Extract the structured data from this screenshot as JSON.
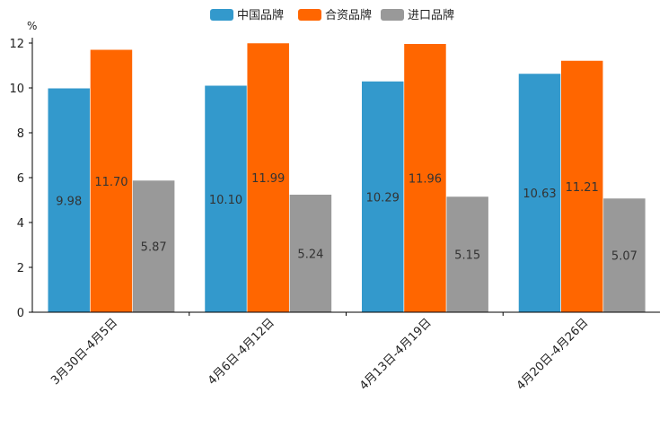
{
  "chart_data": {
    "type": "bar",
    "ylabel": "%",
    "ylim": [
      0,
      12
    ],
    "yticks": [
      0,
      2,
      4,
      6,
      8,
      10,
      12
    ],
    "categories": [
      "3月30日-4月5日",
      "4月6日-4月12日",
      "4月13日-4月19日",
      "4月20日-4月26日"
    ],
    "series": [
      {
        "name": "中国品牌",
        "color": "#3399cc",
        "values": [
          9.98,
          10.1,
          10.29,
          10.63
        ],
        "labels": [
          "9.98",
          "10.10",
          "10.29",
          "10.63"
        ]
      },
      {
        "name": "合资品牌",
        "color": "#ff6600",
        "values": [
          11.7,
          11.99,
          11.96,
          11.21
        ],
        "labels": [
          "11.70",
          "11.99",
          "11.96",
          "11.21"
        ]
      },
      {
        "name": "进口品牌",
        "color": "#999999",
        "values": [
          5.87,
          5.24,
          5.15,
          5.07
        ],
        "labels": [
          "5.87",
          "5.24",
          "5.15",
          "5.07"
        ]
      }
    ],
    "legend_position": "top-center",
    "grid": false
  }
}
